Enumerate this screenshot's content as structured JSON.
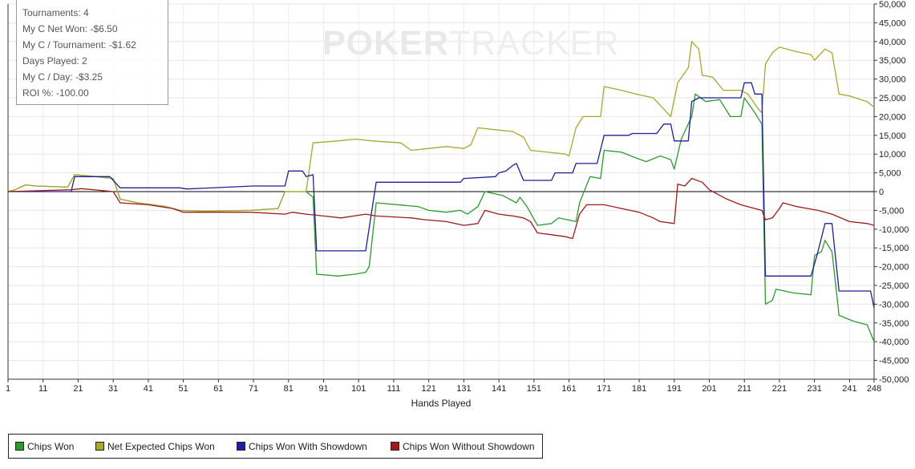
{
  "info_box": {
    "lines": [
      "Tournaments: 4",
      "My C Net Won: -$6.50",
      "My C / Tournament: -$1.62",
      "Days Played: 2",
      "My C / Day: -$3.25",
      "ROI %: -100.00"
    ]
  },
  "watermark": {
    "bold": "POKER",
    "light": "TRACKER"
  },
  "chart_data": {
    "type": "line",
    "xlabel": "Hands Played",
    "ylabel": "",
    "xlim": [
      1,
      248
    ],
    "ylim": [
      -50000,
      50000
    ],
    "x_ticks": [
      1,
      11,
      21,
      31,
      41,
      51,
      61,
      71,
      81,
      91,
      101,
      111,
      121,
      131,
      141,
      151,
      161,
      171,
      181,
      191,
      201,
      211,
      221,
      231,
      241,
      248
    ],
    "y_ticks": [
      50000,
      45000,
      40000,
      35000,
      30000,
      25000,
      20000,
      15000,
      10000,
      5000,
      0,
      -5000,
      -10000,
      -15000,
      -20000,
      -25000,
      -30000,
      -35000,
      -40000,
      -45000,
      -50000
    ],
    "y_tick_labels": [
      "50,000",
      "45,000",
      "40,000",
      "35,000",
      "30,000",
      "25,000",
      "20,000",
      "15,000",
      "10,000",
      "5,000",
      "0",
      "-5,000",
      "-10,000",
      "-15,000",
      "-20,000",
      "-25,000",
      "-30,000",
      "-35,000",
      "-40,000",
      "-45,000",
      "-50,000"
    ],
    "grid": true,
    "legend_position": "bottom-left",
    "series": [
      {
        "name": "Chips Won",
        "color": "#2e9a2e",
        "points": [
          [
            1,
            0
          ],
          [
            3,
            500
          ],
          [
            6,
            1800
          ],
          [
            9,
            1500
          ],
          [
            18,
            1200
          ],
          [
            20,
            4500
          ],
          [
            26,
            4000
          ],
          [
            31,
            3500
          ],
          [
            33,
            -2000
          ],
          [
            38,
            -3000
          ],
          [
            46,
            -4000
          ],
          [
            50,
            -5000
          ],
          [
            57,
            -5200
          ],
          [
            70,
            -5000
          ],
          [
            78,
            -4500
          ],
          [
            80,
            0
          ],
          [
            86,
            0
          ],
          [
            88,
            -1500
          ],
          [
            89,
            -22000
          ],
          [
            95,
            -22500
          ],
          [
            100,
            -22000
          ],
          [
            103,
            -21500
          ],
          [
            104,
            -20000
          ],
          [
            106,
            -3000
          ],
          [
            118,
            -4000
          ],
          [
            121,
            -5000
          ],
          [
            126,
            -5500
          ],
          [
            130,
            -5000
          ],
          [
            132,
            -6000
          ],
          [
            135,
            -4000
          ],
          [
            137,
            0
          ],
          [
            142,
            -1000
          ],
          [
            146,
            -3000
          ],
          [
            147,
            -1500
          ],
          [
            149,
            -4000
          ],
          [
            152,
            -9000
          ],
          [
            156,
            -8500
          ],
          [
            158,
            -7000
          ],
          [
            163,
            -8000
          ],
          [
            164,
            -3000
          ],
          [
            167,
            4000
          ],
          [
            170,
            3500
          ],
          [
            171,
            11000
          ],
          [
            176,
            10500
          ],
          [
            180,
            9000
          ],
          [
            183,
            8000
          ],
          [
            187,
            9500
          ],
          [
            190,
            8500
          ],
          [
            191,
            6000
          ],
          [
            193,
            14000
          ],
          [
            196,
            20000
          ],
          [
            197,
            26000
          ],
          [
            200,
            24000
          ],
          [
            204,
            24500
          ],
          [
            207,
            20000
          ],
          [
            210,
            20000
          ],
          [
            211,
            25000
          ],
          [
            214,
            21000
          ],
          [
            216,
            18000
          ],
          [
            217,
            -30000
          ],
          [
            219,
            -29000
          ],
          [
            220,
            -26000
          ],
          [
            225,
            -27000
          ],
          [
            230,
            -27500
          ],
          [
            231,
            -17000
          ],
          [
            233,
            -16000
          ],
          [
            234,
            -13000
          ],
          [
            236,
            -16000
          ],
          [
            238,
            -33000
          ],
          [
            242,
            -34500
          ],
          [
            246,
            -35500
          ],
          [
            248,
            -40000
          ]
        ]
      },
      {
        "name": "Net Expected Chips Won",
        "color": "#a8a830",
        "points": [
          [
            1,
            0
          ],
          [
            3,
            500
          ],
          [
            6,
            1800
          ],
          [
            9,
            1500
          ],
          [
            18,
            1200
          ],
          [
            20,
            4500
          ],
          [
            26,
            4000
          ],
          [
            31,
            3500
          ],
          [
            33,
            -2000
          ],
          [
            38,
            -3000
          ],
          [
            46,
            -4000
          ],
          [
            50,
            -5000
          ],
          [
            57,
            -5200
          ],
          [
            70,
            -5000
          ],
          [
            78,
            -4500
          ],
          [
            80,
            0
          ],
          [
            86,
            0
          ],
          [
            88,
            13000
          ],
          [
            95,
            13500
          ],
          [
            100,
            14000
          ],
          [
            105,
            13500
          ],
          [
            113,
            13000
          ],
          [
            116,
            11000
          ],
          [
            121,
            11500
          ],
          [
            126,
            12000
          ],
          [
            131,
            11500
          ],
          [
            133,
            12500
          ],
          [
            135,
            17000
          ],
          [
            140,
            16500
          ],
          [
            145,
            16000
          ],
          [
            148,
            14500
          ],
          [
            150,
            11000
          ],
          [
            155,
            10500
          ],
          [
            160,
            10000
          ],
          [
            161,
            9500
          ],
          [
            163,
            17000
          ],
          [
            165,
            20000
          ],
          [
            170,
            20000
          ],
          [
            171,
            28000
          ],
          [
            176,
            27000
          ],
          [
            180,
            26000
          ],
          [
            185,
            25000
          ],
          [
            190,
            20000
          ],
          [
            192,
            29000
          ],
          [
            195,
            33000
          ],
          [
            196,
            40000
          ],
          [
            198,
            38000
          ],
          [
            199,
            31000
          ],
          [
            202,
            30500
          ],
          [
            205,
            27000
          ],
          [
            210,
            27000
          ],
          [
            212,
            26000
          ],
          [
            215,
            22000
          ],
          [
            216,
            21000
          ],
          [
            217,
            34000
          ],
          [
            219,
            37000
          ],
          [
            221,
            38500
          ],
          [
            225,
            37500
          ],
          [
            230,
            36500
          ],
          [
            231,
            35000
          ],
          [
            234,
            38000
          ],
          [
            236,
            37000
          ],
          [
            238,
            26000
          ],
          [
            241,
            25500
          ],
          [
            246,
            24000
          ],
          [
            248,
            22500
          ]
        ]
      },
      {
        "name": "Chips Won With Showdown",
        "color": "#1f1f9a",
        "points": [
          [
            1,
            0
          ],
          [
            19,
            0
          ],
          [
            20,
            4000
          ],
          [
            30,
            4000
          ],
          [
            33,
            1000
          ],
          [
            50,
            1000
          ],
          [
            52,
            700
          ],
          [
            71,
            1500
          ],
          [
            80,
            1500
          ],
          [
            81,
            5500
          ],
          [
            85,
            5500
          ],
          [
            86,
            4000
          ],
          [
            88,
            4500
          ],
          [
            89,
            -15800
          ],
          [
            103,
            -15800
          ],
          [
            106,
            2500
          ],
          [
            130,
            2500
          ],
          [
            131,
            3500
          ],
          [
            140,
            4000
          ],
          [
            141,
            5000
          ],
          [
            143,
            5500
          ],
          [
            145,
            7000
          ],
          [
            146,
            7500
          ],
          [
            148,
            3000
          ],
          [
            156,
            3000
          ],
          [
            157,
            5000
          ],
          [
            162,
            5000
          ],
          [
            163,
            7500
          ],
          [
            169,
            7500
          ],
          [
            171,
            15000
          ],
          [
            178,
            15000
          ],
          [
            179,
            15500
          ],
          [
            186,
            15500
          ],
          [
            188,
            18000
          ],
          [
            190,
            18000
          ],
          [
            191,
            13500
          ],
          [
            195,
            13500
          ],
          [
            196,
            24000
          ],
          [
            198,
            25000
          ],
          [
            205,
            25000
          ],
          [
            210,
            25000
          ],
          [
            211,
            29000
          ],
          [
            213,
            29000
          ],
          [
            214,
            26000
          ],
          [
            216,
            26000
          ],
          [
            217,
            -22500
          ],
          [
            230,
            -22500
          ],
          [
            232,
            -16000
          ],
          [
            234,
            -8500
          ],
          [
            236,
            -8500
          ],
          [
            238,
            -26500
          ],
          [
            247,
            -26500
          ],
          [
            248,
            -31000
          ]
        ]
      },
      {
        "name": "Chips Won Without Showdown",
        "color": "#9a1c1c",
        "points": [
          [
            1,
            0
          ],
          [
            19,
            500
          ],
          [
            22,
            800
          ],
          [
            31,
            0
          ],
          [
            33,
            -3000
          ],
          [
            41,
            -3500
          ],
          [
            48,
            -4500
          ],
          [
            51,
            -5500
          ],
          [
            60,
            -5500
          ],
          [
            70,
            -5500
          ],
          [
            80,
            -6000
          ],
          [
            82,
            -5500
          ],
          [
            86,
            -6000
          ],
          [
            91,
            -6500
          ],
          [
            96,
            -7000
          ],
          [
            103,
            -6000
          ],
          [
            106,
            -6500
          ],
          [
            116,
            -7000
          ],
          [
            120,
            -7500
          ],
          [
            126,
            -8000
          ],
          [
            131,
            -9000
          ],
          [
            135,
            -8500
          ],
          [
            137,
            -5000
          ],
          [
            141,
            -6000
          ],
          [
            145,
            -6500
          ],
          [
            148,
            -7000
          ],
          [
            150,
            -8000
          ],
          [
            152,
            -11000
          ],
          [
            156,
            -11500
          ],
          [
            160,
            -12000
          ],
          [
            162,
            -12500
          ],
          [
            164,
            -6000
          ],
          [
            166,
            -3500
          ],
          [
            171,
            -3500
          ],
          [
            176,
            -4500
          ],
          [
            181,
            -5500
          ],
          [
            185,
            -7000
          ],
          [
            187,
            -8000
          ],
          [
            191,
            -8500
          ],
          [
            192,
            2000
          ],
          [
            194,
            1500
          ],
          [
            196,
            3500
          ],
          [
            199,
            2500
          ],
          [
            201,
            500
          ],
          [
            204,
            -1000
          ],
          [
            206,
            -2000
          ],
          [
            210,
            -3500
          ],
          [
            214,
            -4500
          ],
          [
            216,
            -5000
          ],
          [
            217,
            -7500
          ],
          [
            219,
            -7000
          ],
          [
            221,
            -4500
          ],
          [
            222,
            -3000
          ],
          [
            226,
            -4000
          ],
          [
            232,
            -5000
          ],
          [
            236,
            -6000
          ],
          [
            241,
            -8000
          ],
          [
            246,
            -8500
          ],
          [
            248,
            -9000
          ]
        ]
      }
    ]
  }
}
